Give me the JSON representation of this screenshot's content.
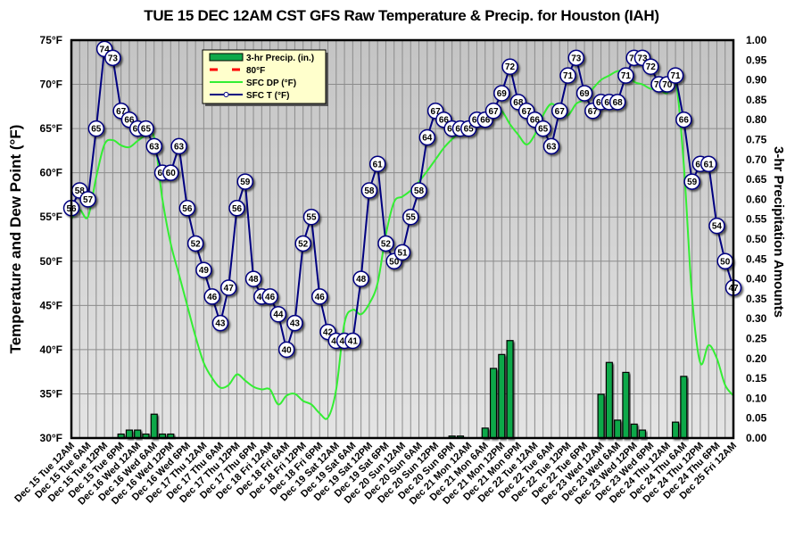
{
  "chart_data": {
    "type": "line",
    "title": "TUE 15 DEC 12AM CST GFS Raw Temperature & Precip. for Houston (IAH)",
    "ylabel": "Temperature and Dew Point (°F)",
    "y2label": "3-hr Precipitation Amounts",
    "xlabel": "",
    "ylim": [
      30,
      75
    ],
    "y2lim": [
      0,
      1.0
    ],
    "grid": true,
    "legend_position": "top-left-inside",
    "y_ticks": [
      "30°F",
      "35°F",
      "40°F",
      "45°F",
      "50°F",
      "55°F",
      "60°F",
      "65°F",
      "70°F",
      "75°F"
    ],
    "y2_ticks": [
      "0.00",
      "0.05",
      "0.10",
      "0.15",
      "0.20",
      "0.25",
      "0.30",
      "0.35",
      "0.40",
      "0.45",
      "0.50",
      "0.55",
      "0.60",
      "0.65",
      "0.70",
      "0.75",
      "0.80",
      "0.85",
      "0.90",
      "0.95",
      "1.00"
    ],
    "x_tick_labels": [
      "Dec 15 Tue 12AM",
      "Dec 15 Tue 6AM",
      "Dec 15 Tue 12PM",
      "Dec 15 Tue 6PM",
      "Dec 16 Wed 12AM",
      "Dec 16 Wed 6AM",
      "Dec 16 Wed 12PM",
      "Dec 16 Wed 6PM",
      "Dec 17 Thu 12AM",
      "Dec 17 Thu 6AM",
      "Dec 17 Thu 12PM",
      "Dec 17 Thu 6PM",
      "Dec 18 Fri 12AM",
      "Dec 18 Fri 6AM",
      "Dec 18 Fri 12PM",
      "Dec 18 Fri 6PM",
      "Dec 19 Sat 12AM",
      "Dec 19 Sat 6AM",
      "Dec 19 Sat 12PM",
      "Dec 19 Sat 6PM",
      "Dec 20 Sun 12AM",
      "Dec 20 Sun 6AM",
      "Dec 20 Sun 12PM",
      "Dec 20 Sun 6PM",
      "Dec 21 Mon 12AM",
      "Dec 21 Mon 6AM",
      "Dec 21 Mon 12PM",
      "Dec 21 Mon 6PM",
      "Dec 22 Tue 12AM",
      "Dec 22 Tue 6AM",
      "Dec 22 Tue 12PM",
      "Dec 22 Tue 6PM",
      "Dec 23 Wed 12AM",
      "Dec 23 Wed 6AM",
      "Dec 23 Wed 12PM",
      "Dec 23 Wed 6PM",
      "Dec 24 Thu 12AM",
      "Dec 24 Thu 6AM",
      "Dec 24 Thu 12PM",
      "Dec 24 Thu 6PM",
      "Dec 25 Fri 12AM"
    ],
    "x_step_hours": 3,
    "legend": [
      {
        "name": "3-hr Precip. (in.)",
        "kind": "bar",
        "color": "#0ea84a"
      },
      {
        "name": "80°F",
        "kind": "dashed-line",
        "color": "#ff0000"
      },
      {
        "name": "SFC DP (°F)",
        "kind": "line",
        "color": "#33ee33"
      },
      {
        "name": "SFC T (°F)",
        "kind": "line-marker",
        "color": "#000080"
      }
    ],
    "series": [
      {
        "name": "SFC T (°F)",
        "axis": "left",
        "color": "#000080",
        "values": [
          56,
          58,
          57,
          65,
          74,
          73,
          67,
          66,
          65,
          65,
          63,
          60,
          60,
          63,
          56,
          52,
          49,
          46,
          43,
          47,
          56,
          59,
          48,
          46,
          46,
          44,
          40,
          43,
          52,
          55,
          46,
          42,
          41,
          41,
          41,
          48,
          58,
          61,
          52,
          50,
          51,
          55,
          58,
          64,
          67,
          66,
          65,
          65,
          65,
          66,
          66,
          67,
          69,
          72,
          68,
          67,
          66,
          65,
          63,
          67,
          71,
          73,
          69,
          67,
          68,
          68,
          68,
          71,
          73,
          73,
          72,
          70,
          70,
          71,
          66,
          59,
          61,
          61,
          54,
          50,
          47
        ]
      },
      {
        "name": "SFC DP (°F)",
        "axis": "left",
        "color": "#33ee33",
        "values": [
          54.8,
          55.8,
          55.0,
          59.5,
          63.2,
          63.7,
          63.1,
          62.9,
          63.6,
          64.2,
          64.0,
          57.0,
          52.0,
          48.5,
          45.0,
          41.5,
          38.5,
          36.8,
          35.7,
          36.0,
          37.2,
          36.5,
          35.8,
          35.5,
          35.5,
          33.8,
          34.8,
          35.0,
          34.2,
          33.8,
          32.8,
          32.3,
          35.5,
          43.0,
          44.5,
          44.0,
          45.2,
          47.5,
          53.0,
          56.7,
          57.3,
          58.0,
          59.0,
          60.2,
          61.5,
          62.8,
          63.8,
          64.6,
          65.2,
          65.7,
          66.5,
          67.2,
          67.0,
          65.5,
          64.3,
          63.2,
          64.3,
          66.5,
          67.8,
          67.0,
          66.5,
          67.8,
          68.3,
          69.5,
          70.5,
          71.0,
          71.5,
          71.4,
          70.3,
          70.0,
          69.5,
          69.5,
          69.0,
          70.5,
          61.0,
          46.0,
          38.5,
          40.5,
          39.0,
          36.0,
          34.8
        ]
      },
      {
        "name": "3-hr Precip. (in.)",
        "axis": "right",
        "kind": "bar",
        "color": "#0ea84a",
        "values": [
          0,
          0,
          0,
          0,
          0,
          0,
          0,
          0,
          0,
          0,
          0,
          0,
          0,
          0,
          0,
          0,
          0,
          0,
          0,
          0,
          0,
          0,
          0,
          0,
          0,
          0,
          0,
          0,
          0,
          0,
          0,
          0,
          0,
          0,
          0,
          0,
          0,
          0,
          0,
          0,
          0,
          0,
          0,
          0,
          0,
          0,
          0,
          0,
          0,
          0,
          0,
          0,
          0,
          0,
          0,
          0,
          0,
          0,
          0,
          0,
          0,
          0,
          0,
          0,
          0,
          0,
          0,
          0,
          0,
          0,
          0,
          0,
          0,
          0,
          0,
          0,
          0,
          0,
          0,
          0,
          0
        ],
        "points": [
          {
            "i": 6,
            "v": 0.01
          },
          {
            "i": 7,
            "v": 0.02
          },
          {
            "i": 8,
            "v": 0.02
          },
          {
            "i": 9,
            "v": 0.01
          },
          {
            "i": 10,
            "v": 0.06
          },
          {
            "i": 11,
            "v": 0.01
          },
          {
            "i": 12,
            "v": 0.01
          },
          {
            "i": 46,
            "v": 0.005
          },
          {
            "i": 47,
            "v": 0.005
          },
          {
            "i": 50,
            "v": 0.025
          },
          {
            "i": 51,
            "v": 0.175
          },
          {
            "i": 52,
            "v": 0.21
          },
          {
            "i": 53,
            "v": 0.245
          },
          {
            "i": 64,
            "v": 0.11
          },
          {
            "i": 65,
            "v": 0.19
          },
          {
            "i": 66,
            "v": 0.045
          },
          {
            "i": 67,
            "v": 0.165
          },
          {
            "i": 68,
            "v": 0.035
          },
          {
            "i": 69,
            "v": 0.02
          },
          {
            "i": 73,
            "v": 0.04
          },
          {
            "i": 74,
            "v": 0.155
          }
        ]
      }
    ]
  }
}
